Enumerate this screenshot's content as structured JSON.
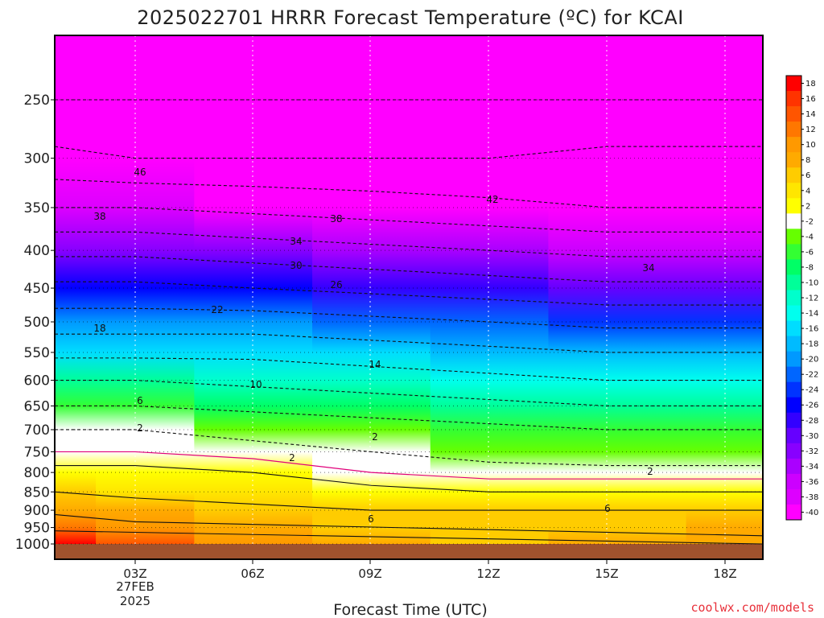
{
  "chart_data": {
    "type": "filled-contour",
    "title": "2025022701 HRRR Forecast Temperature (ºC) for KCAI",
    "xlabel": "Forecast Time (UTC)",
    "ylabel": "",
    "credit": "coolwx.com/models",
    "x_ticks": [
      "03Z",
      "06Z",
      "09Z",
      "12Z",
      "15Z",
      "18Z"
    ],
    "x_date_lines": [
      "27FEB",
      "2025"
    ],
    "y_ticks": [
      "250",
      "300",
      "350",
      "400",
      "450",
      "500",
      "550",
      "600",
      "650",
      "700",
      "750",
      "800",
      "850",
      "900",
      "950",
      "1000"
    ],
    "y_scale": "log-pressure",
    "grid": true,
    "colorbar": {
      "labels": [
        "18",
        "16",
        "14",
        "12",
        "10",
        "8",
        "6",
        "4",
        "2",
        "-2",
        "-4",
        "-6",
        "-8",
        "-10",
        "-12",
        "-14",
        "-16",
        "-18",
        "-20",
        "-22",
        "-24",
        "-26",
        "-28",
        "-30",
        "-32",
        "-34",
        "-36",
        "-38",
        "-40"
      ],
      "colors": [
        "#ff0000",
        "#ff3300",
        "#ff5500",
        "#ff7700",
        "#ff9900",
        "#ffaa00",
        "#ffcc00",
        "#ffe600",
        "#ffff00",
        "#ffffff",
        "#66ff00",
        "#33ff33",
        "#00ff66",
        "#00ff99",
        "#00ffcc",
        "#00ffee",
        "#00ddff",
        "#00bbff",
        "#0099ff",
        "#0066ff",
        "#0033ff",
        "#0000ff",
        "#3300ff",
        "#6600ff",
        "#8800ff",
        "#aa00ff",
        "#cc00ff",
        "#dd00ff",
        "#ff00ff"
      ]
    },
    "contour_labels": [
      "46",
      "42",
      "38",
      "38",
      "34",
      "34",
      "30",
      "26",
      "22",
      "18",
      "14",
      "10",
      "6",
      "2",
      "2",
      "2",
      "2",
      "6",
      "6"
    ],
    "series": [
      {
        "values": [
          -46,
          -46,
          -45,
          -45,
          -45,
          -44,
          -44,
          -44
        ],
        "x": [
          1,
          3,
          6,
          9,
          11,
          12,
          15,
          19
        ]
      },
      {
        "values": [
          -2,
          -2,
          -2,
          -2,
          -2,
          -2,
          -2,
          -2
        ],
        "x": [
          1,
          3,
          6,
          9,
          11,
          12,
          15,
          19
        ]
      }
    ],
    "fields": {
      "x": [
        1,
        3,
        6,
        9,
        12,
        15,
        19
      ],
      "levels": [
        1000,
        950,
        900,
        850,
        800,
        750,
        700,
        650,
        600,
        550,
        500,
        450,
        400,
        350,
        300,
        250
      ],
      "temperature": [
        [
          18,
          14,
          11,
          8,
          7,
          8,
          9
        ],
        [
          13,
          11,
          9,
          7,
          7,
          7,
          8
        ],
        [
          9,
          8,
          7,
          6,
          6,
          6,
          6
        ],
        [
          6,
          5,
          4,
          3,
          2,
          2,
          2
        ],
        [
          3,
          3,
          2,
          0,
          -1,
          -1,
          -1
        ],
        [
          0,
          0,
          -1,
          -2,
          -3,
          -4,
          -4
        ],
        [
          -2,
          -2,
          -3,
          -4,
          -5,
          -6,
          -6
        ],
        [
          -6,
          -6,
          -7,
          -8,
          -9,
          -10,
          -10
        ],
        [
          -10,
          -10,
          -11,
          -12,
          -13,
          -14,
          -14
        ],
        [
          -15,
          -15,
          -15,
          -16,
          -17,
          -18,
          -18
        ],
        [
          -20,
          -20,
          -20,
          -21,
          -22,
          -23,
          -23
        ],
        [
          -25,
          -25,
          -26,
          -27,
          -28,
          -29,
          -29
        ],
        [
          -31,
          -31,
          -32,
          -33,
          -34,
          -35,
          -35
        ],
        [
          -38,
          -38,
          -39,
          -40,
          -41,
          -42,
          -42
        ],
        [
          -45,
          -46,
          -46,
          -46,
          -46,
          -45,
          -45
        ],
        [
          -50,
          -50,
          -50,
          -50,
          -50,
          -50,
          -50
        ]
      ]
    }
  }
}
